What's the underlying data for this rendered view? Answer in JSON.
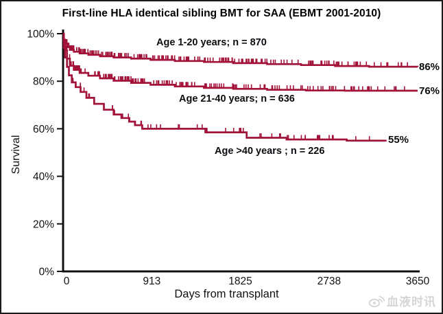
{
  "chart_data": {
    "type": "line",
    "subtype": "kaplan-meier-step-survival",
    "title": "First-line HLA identical sibling BMT for SAA (EBMT 2001-2010)",
    "xlabel": "Days from transplant",
    "ylabel": "Survival",
    "xlim": [
      0,
      3650
    ],
    "ylim": [
      0,
      100
    ],
    "x_ticks": [
      0,
      913,
      1825,
      2738,
      3650
    ],
    "y_tick_values": [
      0,
      20,
      40,
      60,
      80,
      100
    ],
    "y_tick_labels": [
      "0%",
      "20%",
      "40%",
      "60%",
      "80%",
      "100%"
    ],
    "grid": false,
    "legend_position": "labels-on-curves",
    "curve_color": "#a31238",
    "axis_color": "#111111",
    "series": [
      {
        "name": "age-1-20",
        "label": "Age 1-20 years; n = 870",
        "n": 870,
        "end_label": "86%",
        "final_survival_pct": 86,
        "steps": [
          [
            0,
            100
          ],
          [
            8,
            97.5
          ],
          [
            20,
            95.8
          ],
          [
            40,
            94.3
          ],
          [
            70,
            93.2
          ],
          [
            110,
            92.4
          ],
          [
            170,
            91.7
          ],
          [
            260,
            91.1
          ],
          [
            380,
            90.5
          ],
          [
            520,
            90
          ],
          [
            700,
            89.5
          ],
          [
            900,
            89
          ],
          [
            1150,
            88.5
          ],
          [
            1450,
            88.1
          ],
          [
            1750,
            87.6
          ],
          [
            2100,
            87.2
          ],
          [
            2450,
            86.8
          ],
          [
            2800,
            86.4
          ],
          [
            3150,
            86.1
          ],
          [
            3650,
            86
          ]
        ],
        "censoring": {
          "count": 200,
          "seed": 11,
          "min_day": 25,
          "max_day": 3560,
          "bias": 1.6
        }
      },
      {
        "name": "age-21-40",
        "label": "Age 21-40 years; n = 636",
        "n": 636,
        "end_label": "76%",
        "final_survival_pct": 76,
        "steps": [
          [
            0,
            100
          ],
          [
            8,
            96.5
          ],
          [
            20,
            93
          ],
          [
            40,
            89.5
          ],
          [
            70,
            86.5
          ],
          [
            110,
            84.8
          ],
          [
            170,
            83.5
          ],
          [
            260,
            82.3
          ],
          [
            380,
            81.2
          ],
          [
            520,
            80.2
          ],
          [
            700,
            79.3
          ],
          [
            900,
            78.5
          ],
          [
            1150,
            77.8
          ],
          [
            1450,
            77.2
          ],
          [
            1750,
            76.8
          ],
          [
            2100,
            76.4
          ],
          [
            2500,
            76.1
          ],
          [
            2900,
            76
          ],
          [
            3650,
            76
          ]
        ],
        "censoring": {
          "count": 165,
          "seed": 22,
          "min_day": 25,
          "max_day": 3520,
          "bias": 1.5
        }
      },
      {
        "name": "age-over-40",
        "label": "Age >40 years ; n = 226",
        "n": 226,
        "end_label": "55%",
        "final_survival_pct": 55,
        "steps": [
          [
            0,
            100
          ],
          [
            8,
            94
          ],
          [
            20,
            90
          ],
          [
            40,
            86
          ],
          [
            60,
            82.5
          ],
          [
            90,
            79.5
          ],
          [
            130,
            77.5
          ],
          [
            180,
            75.5
          ],
          [
            240,
            73
          ],
          [
            320,
            70.5
          ],
          [
            420,
            68
          ],
          [
            520,
            66
          ],
          [
            600,
            64.5
          ],
          [
            680,
            63
          ],
          [
            740,
            61.5
          ],
          [
            815,
            60
          ],
          [
            1465,
            58.5
          ],
          [
            1890,
            56.2
          ],
          [
            2300,
            55.5
          ],
          [
            2920,
            55
          ],
          [
            3330,
            55
          ]
        ],
        "censoring": {
          "count": 52,
          "seed": 33,
          "min_day": 40,
          "max_day": 3200,
          "bias": 1.4
        }
      }
    ]
  },
  "watermark": {
    "icon": "weibo-icon",
    "text": "血液时讯",
    "color": "#d6d6d6"
  }
}
